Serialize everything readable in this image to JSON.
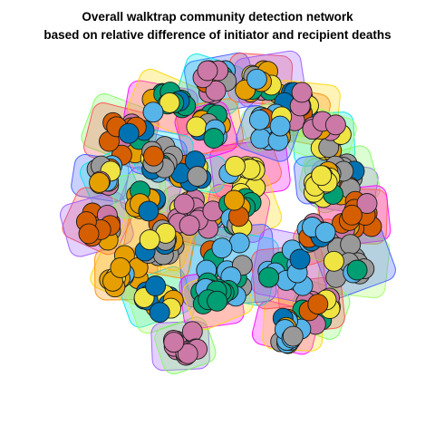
{
  "title_line1": "Overall walktrap community detection network",
  "title_line2": "based on relative difference of initiator and recipient deaths",
  "palette": [
    "#E69F00",
    "#56B4E9",
    "#009E73",
    "#F0E442",
    "#0072B2",
    "#D55E00",
    "#CC79A7",
    "#999999"
  ],
  "hull_colors": [
    "#7CFC5C",
    "#FF00FF",
    "#3B5BFF",
    "#FF4D4D",
    "#FFD700",
    "#00E5E5",
    "#9B59FF",
    "#FF8C00",
    "#A0FF60"
  ],
  "chart_data": {
    "type": "network",
    "layout": "community clusters",
    "vertex_count": 420,
    "title": "Overall walktrap community detection network based on relative difference of initiator and recipient deaths"
  }
}
